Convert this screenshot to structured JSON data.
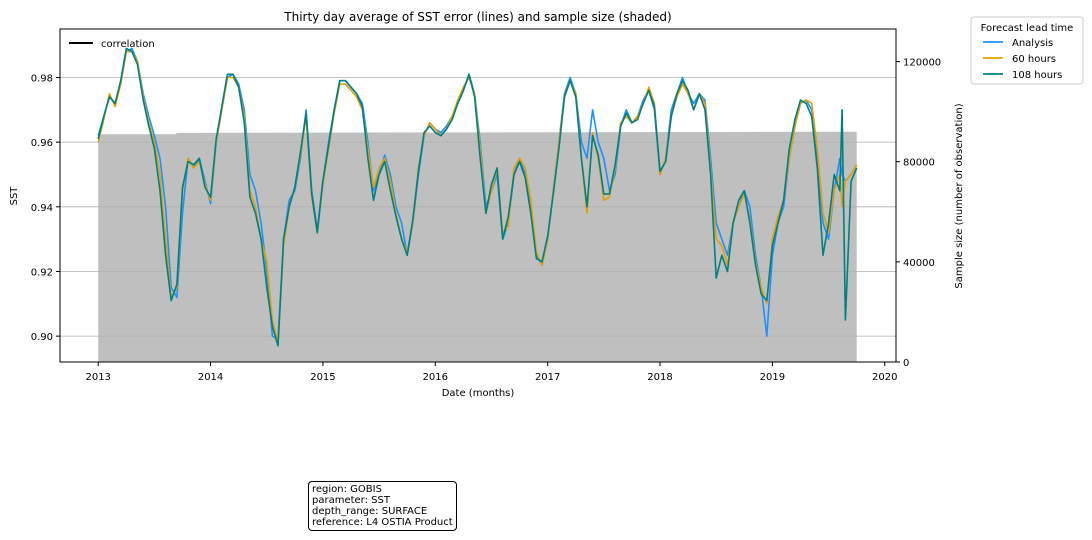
{
  "chart_data": {
    "type": "line",
    "title": "Thirty day average of SST error (lines) and sample size (shaded)",
    "xlabel": "Date (months)",
    "ylabel": "SST",
    "y2label": "Sample size (number of observation)",
    "xlim": [
      2012.66,
      2020.1
    ],
    "ylim": [
      0.892,
      0.995
    ],
    "y2lim": [
      0,
      133000
    ],
    "x_ticks": [
      2013,
      2014,
      2015,
      2016,
      2017,
      2018,
      2019,
      2020
    ],
    "x_tick_labels": [
      "2013",
      "2014",
      "2015",
      "2016",
      "2017",
      "2018",
      "2019",
      "2020"
    ],
    "y_ticks": [
      0.9,
      0.92,
      0.94,
      0.96,
      0.98
    ],
    "y_tick_labels": [
      "0.90",
      "0.92",
      "0.94",
      "0.96",
      "0.98"
    ],
    "y2_ticks": [
      0,
      40000,
      80000,
      120000
    ],
    "y2_tick_labels": [
      "0",
      "40000",
      "80000",
      "120000"
    ],
    "grid": "horizontal",
    "correlation_legend_label": "correlation",
    "legend_title": "Forecast lead time",
    "legend_placement": "outside-top-right",
    "sample_size": {
      "name": "sample size",
      "color": "#bfbfbf",
      "x": [
        2013.0,
        2013.69,
        2013.7,
        2019.75
      ],
      "values": [
        91000,
        91000,
        91500,
        92000
      ]
    },
    "series": [
      {
        "name": "Analysis",
        "color": "#1e90ff",
        "x": [
          2013.0,
          2013.05,
          2013.1,
          2013.15,
          2013.2,
          2013.25,
          2013.3,
          2013.35,
          2013.4,
          2013.45,
          2013.5,
          2013.55,
          2013.6,
          2013.65,
          2013.7,
          2013.75,
          2013.8,
          2013.85,
          2013.9,
          2013.95,
          2014.0,
          2014.05,
          2014.1,
          2014.15,
          2014.2,
          2014.25,
          2014.3,
          2014.35,
          2014.4,
          2014.45,
          2014.5,
          2014.55,
          2014.6,
          2014.65,
          2014.7,
          2014.75,
          2014.8,
          2014.85,
          2014.9,
          2014.95,
          2015.0,
          2015.05,
          2015.1,
          2015.15,
          2015.2,
          2015.25,
          2015.3,
          2015.35,
          2015.4,
          2015.45,
          2015.5,
          2015.55,
          2015.6,
          2015.65,
          2015.7,
          2015.75,
          2015.8,
          2015.85,
          2015.9,
          2015.95,
          2016.0,
          2016.05,
          2016.1,
          2016.15,
          2016.2,
          2016.25,
          2016.3,
          2016.35,
          2016.4,
          2016.45,
          2016.5,
          2016.55,
          2016.6,
          2016.65,
          2016.7,
          2016.75,
          2016.8,
          2016.85,
          2016.9,
          2016.95,
          2017.0,
          2017.05,
          2017.1,
          2017.15,
          2017.2,
          2017.25,
          2017.3,
          2017.35,
          2017.4,
          2017.45,
          2017.5,
          2017.55,
          2017.6,
          2017.65,
          2017.7,
          2017.75,
          2017.8,
          2017.85,
          2017.9,
          2017.95,
          2018.0,
          2018.05,
          2018.1,
          2018.15,
          2018.2,
          2018.25,
          2018.3,
          2018.35,
          2018.4,
          2018.45,
          2018.5,
          2018.55,
          2018.6,
          2018.65,
          2018.7,
          2018.75,
          2018.8,
          2018.85,
          2018.9,
          2018.95,
          2019.0,
          2019.05,
          2019.1,
          2019.15,
          2019.2,
          2019.25,
          2019.3,
          2019.35,
          2019.4,
          2019.45,
          2019.5,
          2019.55,
          2019.6,
          2019.62,
          2019.65,
          2019.7,
          2019.75
        ],
        "values": [
          0.962,
          0.968,
          0.974,
          0.972,
          0.978,
          0.988,
          0.989,
          0.985,
          0.975,
          0.968,
          0.962,
          0.955,
          0.94,
          0.915,
          0.912,
          0.938,
          0.955,
          0.952,
          0.955,
          0.948,
          0.941,
          0.96,
          0.97,
          0.98,
          0.981,
          0.978,
          0.97,
          0.95,
          0.945,
          0.935,
          0.92,
          0.9,
          0.899,
          0.93,
          0.942,
          0.945,
          0.955,
          0.97,
          0.945,
          0.933,
          0.948,
          0.96,
          0.97,
          0.979,
          0.979,
          0.977,
          0.975,
          0.972,
          0.96,
          0.945,
          0.95,
          0.956,
          0.95,
          0.94,
          0.935,
          0.925,
          0.935,
          0.95,
          0.962,
          0.966,
          0.964,
          0.963,
          0.965,
          0.968,
          0.972,
          0.976,
          0.981,
          0.975,
          0.96,
          0.94,
          0.945,
          0.95,
          0.93,
          0.935,
          0.95,
          0.955,
          0.95,
          0.94,
          0.925,
          0.922,
          0.93,
          0.945,
          0.96,
          0.975,
          0.98,
          0.975,
          0.96,
          0.955,
          0.97,
          0.96,
          0.955,
          0.945,
          0.95,
          0.965,
          0.97,
          0.966,
          0.968,
          0.973,
          0.976,
          0.97,
          0.95,
          0.955,
          0.97,
          0.975,
          0.98,
          0.975,
          0.972,
          0.975,
          0.973,
          0.955,
          0.935,
          0.93,
          0.925,
          0.935,
          0.94,
          0.945,
          0.94,
          0.925,
          0.915,
          0.9,
          0.925,
          0.935,
          0.94,
          0.955,
          0.965,
          0.972,
          0.973,
          0.97,
          0.955,
          0.935,
          0.93,
          0.945,
          0.955,
          0.95,
          0.948,
          0.95,
          0.953
        ]
      },
      {
        "name": "60 hours",
        "color": "#e69f00",
        "x": [
          2013.0,
          2013.05,
          2013.1,
          2013.15,
          2013.2,
          2013.25,
          2013.3,
          2013.35,
          2013.4,
          2013.45,
          2013.5,
          2013.55,
          2013.6,
          2013.65,
          2013.7,
          2013.75,
          2013.8,
          2013.85,
          2013.9,
          2013.95,
          2014.0,
          2014.05,
          2014.1,
          2014.15,
          2014.2,
          2014.25,
          2014.3,
          2014.35,
          2014.4,
          2014.45,
          2014.5,
          2014.55,
          2014.6,
          2014.65,
          2014.7,
          2014.75,
          2014.8,
          2014.85,
          2014.9,
          2014.95,
          2015.0,
          2015.05,
          2015.1,
          2015.15,
          2015.2,
          2015.25,
          2015.3,
          2015.35,
          2015.4,
          2015.45,
          2015.5,
          2015.55,
          2015.6,
          2015.65,
          2015.7,
          2015.75,
          2015.8,
          2015.85,
          2015.9,
          2015.95,
          2016.0,
          2016.05,
          2016.1,
          2016.15,
          2016.2,
          2016.25,
          2016.3,
          2016.35,
          2016.4,
          2016.45,
          2016.5,
          2016.55,
          2016.6,
          2016.65,
          2016.7,
          2016.75,
          2016.8,
          2016.85,
          2016.9,
          2016.95,
          2017.0,
          2017.05,
          2017.1,
          2017.15,
          2017.2,
          2017.25,
          2017.3,
          2017.35,
          2017.4,
          2017.45,
          2017.5,
          2017.55,
          2017.6,
          2017.65,
          2017.7,
          2017.75,
          2017.8,
          2017.85,
          2017.9,
          2017.95,
          2018.0,
          2018.05,
          2018.1,
          2018.15,
          2018.2,
          2018.25,
          2018.3,
          2018.35,
          2018.4,
          2018.45,
          2018.5,
          2018.55,
          2018.6,
          2018.65,
          2018.7,
          2018.75,
          2018.8,
          2018.85,
          2018.9,
          2018.95,
          2019.0,
          2019.05,
          2019.1,
          2019.15,
          2019.2,
          2019.25,
          2019.3,
          2019.35,
          2019.4,
          2019.45,
          2019.5,
          2019.55,
          2019.6,
          2019.62,
          2019.65,
          2019.7,
          2019.75
        ],
        "values": [
          0.96,
          0.967,
          0.975,
          0.971,
          0.978,
          0.988,
          0.988,
          0.985,
          0.974,
          0.966,
          0.96,
          0.95,
          0.93,
          0.912,
          0.915,
          0.945,
          0.955,
          0.952,
          0.954,
          0.947,
          0.942,
          0.96,
          0.97,
          0.98,
          0.98,
          0.977,
          0.968,
          0.945,
          0.94,
          0.93,
          0.923,
          0.905,
          0.898,
          0.928,
          0.94,
          0.946,
          0.956,
          0.968,
          0.943,
          0.932,
          0.947,
          0.958,
          0.969,
          0.978,
          0.978,
          0.976,
          0.974,
          0.97,
          0.958,
          0.946,
          0.952,
          0.955,
          0.948,
          0.938,
          0.93,
          0.926,
          0.935,
          0.952,
          0.962,
          0.966,
          0.964,
          0.962,
          0.964,
          0.968,
          0.973,
          0.977,
          0.98,
          0.975,
          0.958,
          0.938,
          0.945,
          0.952,
          0.932,
          0.934,
          0.952,
          0.955,
          0.952,
          0.942,
          0.926,
          0.922,
          0.93,
          0.945,
          0.96,
          0.974,
          0.979,
          0.975,
          0.955,
          0.938,
          0.963,
          0.955,
          0.942,
          0.943,
          0.952,
          0.966,
          0.968,
          0.966,
          0.968,
          0.972,
          0.977,
          0.972,
          0.95,
          0.955,
          0.968,
          0.974,
          0.978,
          0.975,
          0.97,
          0.975,
          0.972,
          0.952,
          0.93,
          0.928,
          0.922,
          0.935,
          0.94,
          0.944,
          0.936,
          0.923,
          0.915,
          0.91,
          0.93,
          0.937,
          0.942,
          0.955,
          0.965,
          0.972,
          0.973,
          0.972,
          0.958,
          0.938,
          0.932,
          0.945,
          0.95,
          0.94,
          0.948,
          0.95,
          0.953
        ]
      },
      {
        "name": "108 hours",
        "color": "#008080",
        "x": [
          2013.0,
          2013.05,
          2013.1,
          2013.15,
          2013.2,
          2013.25,
          2013.3,
          2013.35,
          2013.4,
          2013.45,
          2013.5,
          2013.55,
          2013.6,
          2013.65,
          2013.7,
          2013.75,
          2013.8,
          2013.85,
          2013.9,
          2013.95,
          2014.0,
          2014.05,
          2014.1,
          2014.15,
          2014.2,
          2014.25,
          2014.3,
          2014.35,
          2014.4,
          2014.45,
          2014.5,
          2014.55,
          2014.6,
          2014.65,
          2014.7,
          2014.75,
          2014.8,
          2014.85,
          2014.9,
          2014.95,
          2015.0,
          2015.05,
          2015.1,
          2015.15,
          2015.2,
          2015.25,
          2015.3,
          2015.35,
          2015.4,
          2015.45,
          2015.5,
          2015.55,
          2015.6,
          2015.65,
          2015.7,
          2015.75,
          2015.8,
          2015.85,
          2015.9,
          2015.95,
          2016.0,
          2016.05,
          2016.1,
          2016.15,
          2016.2,
          2016.25,
          2016.3,
          2016.35,
          2016.4,
          2016.45,
          2016.5,
          2016.55,
          2016.6,
          2016.65,
          2016.7,
          2016.75,
          2016.8,
          2016.85,
          2016.9,
          2016.95,
          2017.0,
          2017.05,
          2017.1,
          2017.15,
          2017.2,
          2017.25,
          2017.3,
          2017.35,
          2017.4,
          2017.45,
          2017.5,
          2017.55,
          2017.6,
          2017.65,
          2017.7,
          2017.75,
          2017.8,
          2017.85,
          2017.9,
          2017.95,
          2018.0,
          2018.05,
          2018.1,
          2018.15,
          2018.2,
          2018.25,
          2018.3,
          2018.35,
          2018.4,
          2018.45,
          2018.5,
          2018.55,
          2018.6,
          2018.65,
          2018.7,
          2018.75,
          2018.8,
          2018.85,
          2018.9,
          2018.95,
          2019.0,
          2019.05,
          2019.1,
          2019.15,
          2019.2,
          2019.25,
          2019.3,
          2019.35,
          2019.4,
          2019.45,
          2019.5,
          2019.55,
          2019.6,
          2019.62,
          2019.65,
          2019.7,
          2019.75
        ],
        "values": [
          0.961,
          0.968,
          0.974,
          0.972,
          0.979,
          0.989,
          0.988,
          0.984,
          0.973,
          0.965,
          0.958,
          0.945,
          0.925,
          0.911,
          0.916,
          0.946,
          0.954,
          0.953,
          0.955,
          0.946,
          0.943,
          0.961,
          0.971,
          0.981,
          0.981,
          0.977,
          0.966,
          0.943,
          0.938,
          0.93,
          0.915,
          0.903,
          0.897,
          0.93,
          0.94,
          0.946,
          0.957,
          0.969,
          0.944,
          0.932,
          0.948,
          0.959,
          0.97,
          0.979,
          0.979,
          0.977,
          0.975,
          0.971,
          0.955,
          0.942,
          0.95,
          0.954,
          0.945,
          0.937,
          0.93,
          0.925,
          0.936,
          0.951,
          0.963,
          0.965,
          0.963,
          0.962,
          0.964,
          0.967,
          0.972,
          0.976,
          0.981,
          0.974,
          0.955,
          0.938,
          0.947,
          0.952,
          0.93,
          0.937,
          0.95,
          0.954,
          0.949,
          0.938,
          0.924,
          0.923,
          0.931,
          0.944,
          0.958,
          0.974,
          0.979,
          0.974,
          0.955,
          0.94,
          0.962,
          0.956,
          0.944,
          0.944,
          0.953,
          0.965,
          0.969,
          0.966,
          0.967,
          0.972,
          0.976,
          0.971,
          0.951,
          0.954,
          0.968,
          0.975,
          0.979,
          0.976,
          0.97,
          0.975,
          0.97,
          0.95,
          0.918,
          0.925,
          0.92,
          0.935,
          0.942,
          0.945,
          0.935,
          0.922,
          0.913,
          0.911,
          0.928,
          0.935,
          0.942,
          0.958,
          0.967,
          0.973,
          0.972,
          0.968,
          0.952,
          0.925,
          0.935,
          0.95,
          0.945,
          0.97,
          0.905,
          0.948,
          0.952
        ]
      }
    ]
  },
  "info_box": {
    "lines": [
      "region: GOBIS",
      "parameter: SST",
      "depth_range: SURFACE",
      "reference: L4 OSTIA Product"
    ]
  }
}
